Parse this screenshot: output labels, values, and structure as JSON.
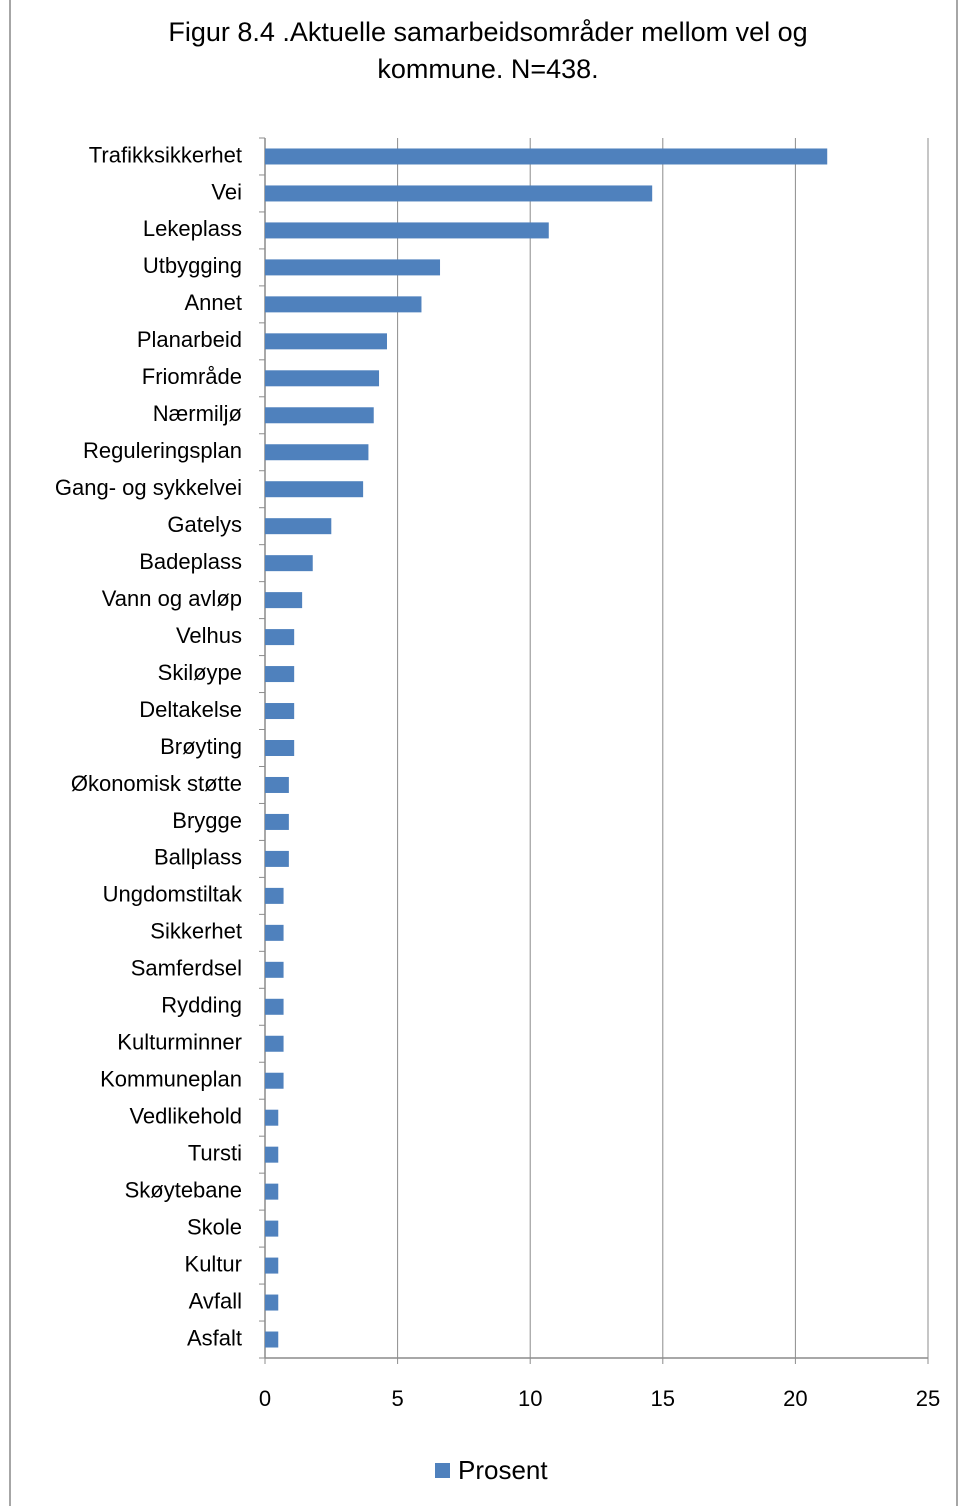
{
  "chart_data": {
    "type": "bar",
    "orientation": "horizontal",
    "title": "Figur 8.4 .Aktuelle samarbeidsområder mellom vel og kommune. N=438.",
    "categories": [
      "Trafikksikkerhet",
      "Vei",
      "Lekeplass",
      "Utbygging",
      "Annet",
      "Planarbeid",
      "Friområde",
      "Nærmiljø",
      "Reguleringsplan",
      "Gang- og sykkelvei",
      "Gatelys",
      "Badeplass",
      "Vann og avløp",
      "Velhus",
      "Skiløype",
      "Deltakelse",
      "Brøyting",
      "Økonomisk støtte",
      "Brygge",
      "Ballplass",
      "Ungdomstiltak",
      "Sikkerhet",
      "Samferdsel",
      "Rydding",
      "Kulturminner",
      "Kommuneplan",
      "Vedlikehold",
      "Tursti",
      "Skøytebane",
      "Skole",
      "Kultur",
      "Avfall",
      "Asfalt"
    ],
    "series": [
      {
        "name": "Prosent",
        "color": "#4f81bd",
        "values": [
          21.2,
          14.6,
          10.7,
          6.6,
          5.9,
          4.6,
          4.3,
          4.1,
          3.9,
          3.7,
          2.5,
          1.8,
          1.4,
          1.1,
          1.1,
          1.1,
          1.1,
          0.9,
          0.9,
          0.9,
          0.7,
          0.7,
          0.7,
          0.7,
          0.7,
          0.7,
          0.5,
          0.5,
          0.5,
          0.5,
          0.5,
          0.5,
          0.5
        ]
      }
    ],
    "xlim": [
      0,
      25
    ],
    "xticks": [
      0,
      5,
      10,
      15,
      20,
      25
    ],
    "grid": true,
    "legend": "bottom"
  }
}
